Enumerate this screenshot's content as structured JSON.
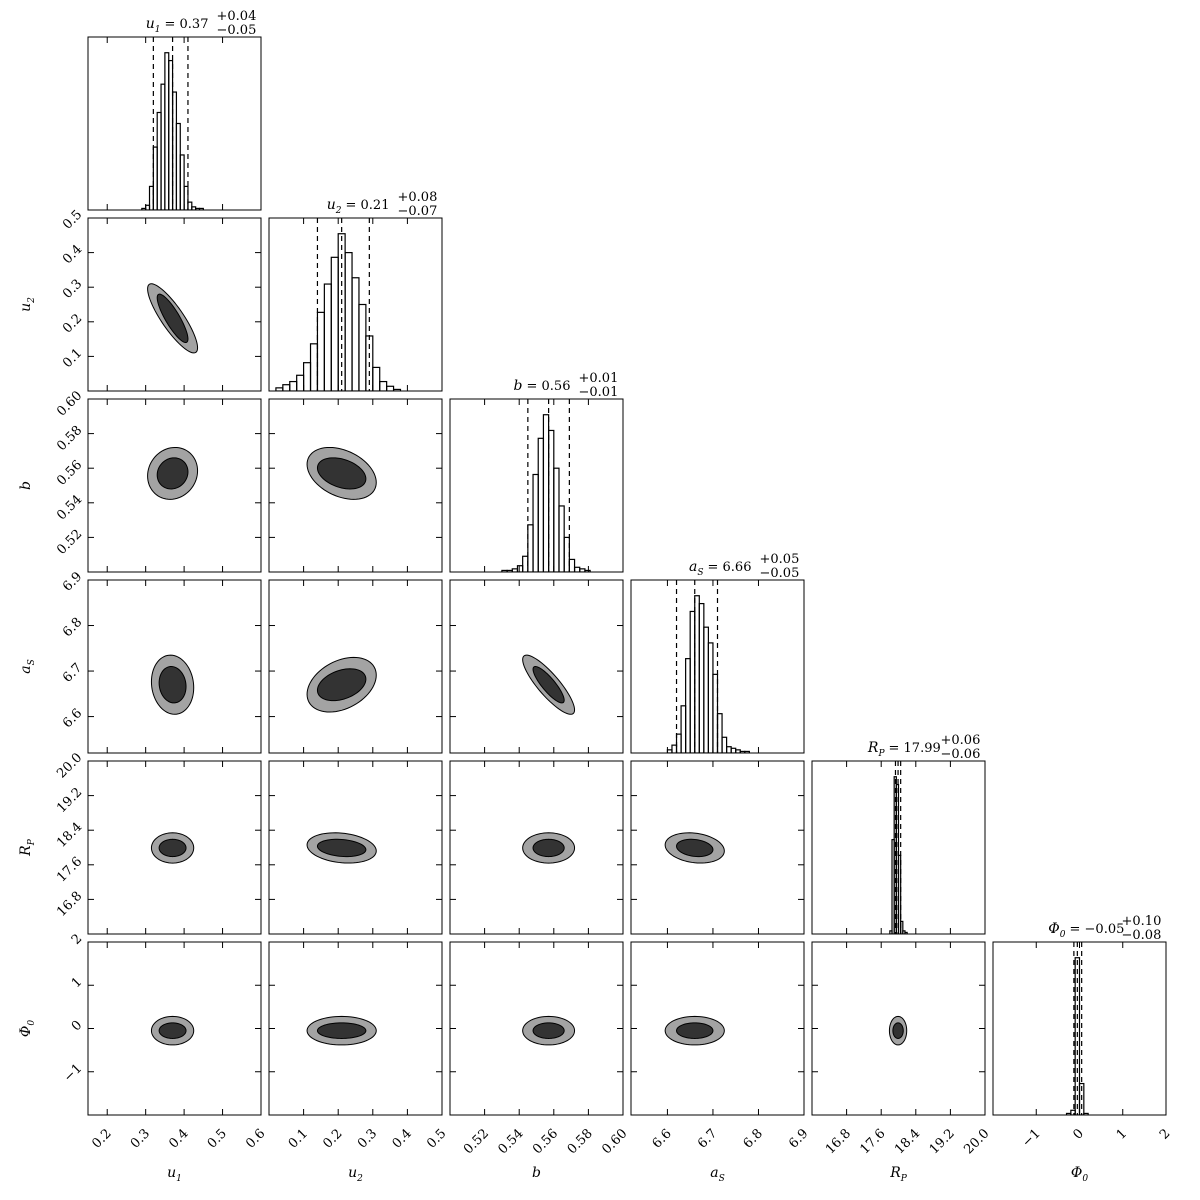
{
  "chart_data": {
    "type": "corner",
    "hist_ylim": [
      0,
      110
    ],
    "params": [
      {
        "symbol": "u",
        "subscript": "1",
        "lim": [
          0.15,
          0.6
        ],
        "ticks": [
          0.2,
          0.3,
          0.4,
          0.5,
          0.6
        ],
        "title": {
          "value": "= 0.37",
          "plus": "+0.04",
          "minus": "−0.05"
        },
        "bins": [
          0.29,
          0.3,
          0.31,
          0.32,
          0.33,
          0.34,
          0.35,
          0.36,
          0.37,
          0.38,
          0.39,
          0.4,
          0.41,
          0.42,
          0.43,
          0.44,
          0.45
        ],
        "counts": [
          1,
          3,
          15,
          40,
          62,
          80,
          100,
          95,
          75,
          55,
          35,
          15,
          5,
          2,
          1,
          1
        ],
        "quantiles": [
          0.32,
          0.37,
          0.41
        ],
        "contours": []
      },
      {
        "symbol": "u",
        "subscript": "2",
        "lim": [
          0,
          0.5
        ],
        "ticks": [
          0.1,
          0.2,
          0.3,
          0.4,
          0.5
        ],
        "title": {
          "value": "= 0.21",
          "plus": "+0.08",
          "minus": "−0.07"
        },
        "bins": [
          0.02,
          0.04,
          0.06,
          0.08,
          0.1,
          0.12,
          0.14,
          0.16,
          0.18,
          0.2,
          0.22,
          0.24,
          0.26,
          0.28,
          0.3,
          0.32,
          0.34,
          0.36,
          0.38
        ],
        "counts": [
          2,
          4,
          6,
          10,
          18,
          30,
          50,
          68,
          85,
          100,
          88,
          72,
          55,
          35,
          15,
          6,
          3,
          1
        ],
        "quantiles": [
          0.14,
          0.21,
          0.29
        ],
        "contours": [
          {
            "center": [
              0.37,
              0.21
            ],
            "inner": [
              0.04,
              0.07
            ],
            "outer": [
              0.065,
              0.1
            ],
            "rho": -0.85
          }
        ]
      },
      {
        "symbol": "b",
        "lim": [
          0.5,
          0.6
        ],
        "ticks": [
          0.52,
          0.54,
          0.56,
          0.58,
          {
            "value": 0.6,
            "label": "0.60"
          }
        ],
        "title": {
          "value": "= 0.56",
          "plus": "+0.01",
          "minus": "−0.01"
        },
        "bins": [
          0.53,
          0.533,
          0.536,
          0.539,
          0.542,
          0.545,
          0.548,
          0.551,
          0.554,
          0.557,
          0.56,
          0.563,
          0.566,
          0.569,
          0.572,
          0.575,
          0.578,
          0.581
        ],
        "counts": [
          1,
          1,
          2,
          4,
          10,
          30,
          62,
          85,
          100,
          90,
          66,
          42,
          22,
          8,
          3,
          2,
          1
        ],
        "quantiles": [
          0.545,
          0.557,
          0.569
        ],
        "contours": [
          {
            "center": [
              0.37,
              0.557
            ],
            "inner": [
              0.04,
              0.009
            ],
            "outer": [
              0.065,
              0.015
            ],
            "rho": 0.1
          },
          {
            "center": [
              0.21,
              0.557
            ],
            "inner": [
              0.07,
              0.009
            ],
            "outer": [
              0.1,
              0.015
            ],
            "rho": -0.35
          }
        ]
      },
      {
        "symbol": "a",
        "subscript": "S",
        "lim": [
          6.52,
          6.9
        ],
        "ticks": [
          6.6,
          6.7,
          6.8,
          6.9
        ],
        "title": {
          "value": "= 6.66",
          "plus": "+0.05",
          "minus": "−0.05"
        },
        "bins": [
          6.6,
          6.61,
          6.62,
          6.63,
          6.64,
          6.65,
          6.66,
          6.67,
          6.68,
          6.69,
          6.7,
          6.71,
          6.72,
          6.73,
          6.74,
          6.75,
          6.76,
          6.77,
          6.78
        ],
        "counts": [
          2,
          5,
          12,
          30,
          60,
          90,
          100,
          95,
          80,
          70,
          50,
          25,
          10,
          4,
          3,
          2,
          1,
          1
        ],
        "quantiles": [
          6.62,
          6.66,
          6.71
        ],
        "contours": [
          {
            "center": [
              0.37,
              6.67
            ],
            "inner": [
              0.035,
              0.04
            ],
            "outer": [
              0.055,
              0.065
            ],
            "rho": -0.1
          },
          {
            "center": [
              0.21,
              6.67
            ],
            "inner": [
              0.07,
              0.035
            ],
            "outer": [
              0.1,
              0.06
            ],
            "rho": 0.35
          },
          {
            "center": [
              0.557,
              6.67
            ],
            "inner": [
              0.009,
              0.04
            ],
            "outer": [
              0.015,
              0.065
            ],
            "rho": -0.85
          }
        ]
      },
      {
        "symbol": "R",
        "subscript": "P",
        "lim": [
          16,
          20
        ],
        "ticks": [
          16.8,
          17.6,
          18.4,
          19.2,
          {
            "value": 20,
            "label": "20.0"
          }
        ],
        "title": {
          "value": "= 17.99",
          "plus": "+0.06",
          "minus": "−0.06"
        },
        "bins": [
          17.8,
          17.85,
          17.9,
          17.95,
          18.0,
          18.05,
          18.1,
          18.15,
          18.2
        ],
        "counts": [
          2,
          60,
          100,
          95,
          50,
          8,
          2,
          1
        ],
        "quantiles": [
          17.93,
          17.99,
          18.05
        ],
        "contours": [
          {
            "center": [
              0.37,
              17.99
            ],
            "inner": [
              0.035,
              0.2
            ],
            "outer": [
              0.055,
              0.35
            ],
            "rho": 0
          },
          {
            "center": [
              0.21,
              17.99
            ],
            "inner": [
              0.07,
              0.2
            ],
            "outer": [
              0.1,
              0.35
            ],
            "rho": -0.2
          },
          {
            "center": [
              0.557,
              17.99
            ],
            "inner": [
              0.009,
              0.2
            ],
            "outer": [
              0.015,
              0.35
            ],
            "rho": 0
          },
          {
            "center": [
              6.66,
              17.99
            ],
            "inner": [
              0.04,
              0.2
            ],
            "outer": [
              0.065,
              0.35
            ],
            "rho": -0.2
          }
        ]
      },
      {
        "symbol": "Φ",
        "subscript": "0",
        "lim": [
          -2,
          2
        ],
        "ticks": [
          {
            "value": -1,
            "label": "−1"
          },
          0,
          1,
          2
        ],
        "title": {
          "value": "= −0.05",
          "plus": "+0.10",
          "minus": "−0.08"
        },
        "bins": [
          -0.3,
          -0.2,
          -0.1,
          0,
          0.1,
          0.2
        ],
        "counts": [
          1,
          3,
          100,
          20,
          1
        ],
        "quantiles": [
          -0.13,
          -0.05,
          0.05
        ],
        "contours": [
          {
            "center": [
              0.37,
              -0.05
            ],
            "inner": [
              0.035,
              0.18
            ],
            "outer": [
              0.055,
              0.33
            ],
            "rho": 0
          },
          {
            "center": [
              0.21,
              -0.05
            ],
            "inner": [
              0.07,
              0.18
            ],
            "outer": [
              0.1,
              0.33
            ],
            "rho": 0
          },
          {
            "center": [
              0.557,
              -0.05
            ],
            "inner": [
              0.009,
              0.18
            ],
            "outer": [
              0.015,
              0.33
            ],
            "rho": 0
          },
          {
            "center": [
              6.66,
              -0.05
            ],
            "inner": [
              0.04,
              0.18
            ],
            "outer": [
              0.065,
              0.33
            ],
            "rho": 0
          },
          {
            "center": [
              17.99,
              -0.05
            ],
            "inner": [
              0.12,
              0.18
            ],
            "outer": [
              0.2,
              0.33
            ],
            "rho": 0
          }
        ]
      }
    ]
  }
}
